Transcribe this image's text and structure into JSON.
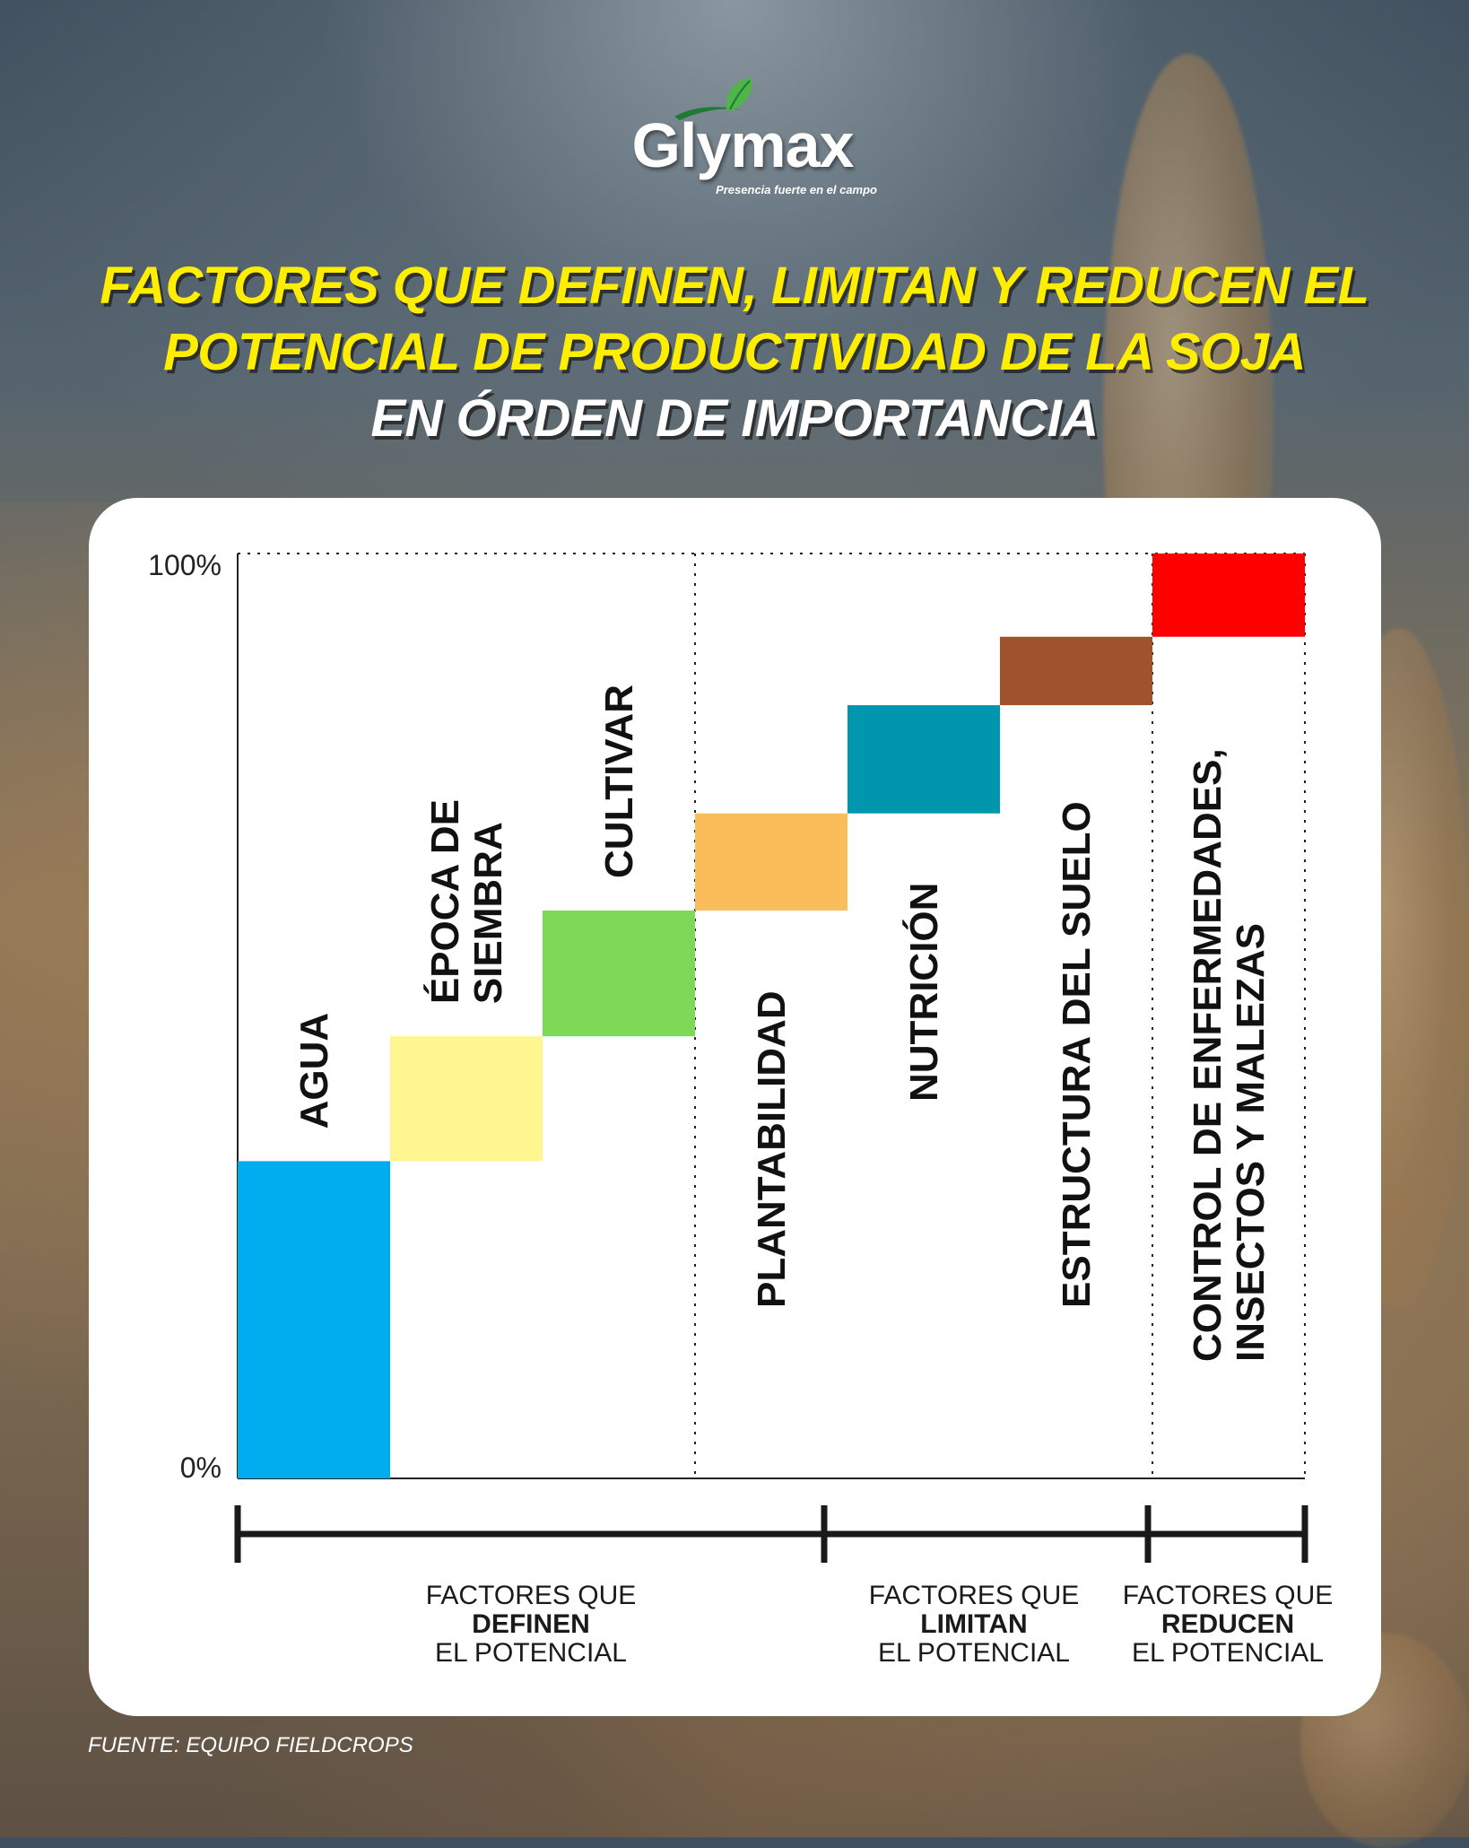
{
  "brand": {
    "name": "Glymax",
    "tagline": "Presencia fuerte en el campo",
    "colors": {
      "leaf_dark": "#1f7a33",
      "leaf_light": "#4fb548"
    }
  },
  "title": {
    "line1": "FACTORES QUE DEFINEN, LIMITAN Y REDUCEN EL",
    "line2": "POTENCIAL DE PRODUCTIVIDAD DE LA SOJA",
    "line3": "EN ÓRDEN DE IMPORTANCIA"
  },
  "chart_data": {
    "type": "bar",
    "subtype": "waterfall",
    "ylim": [
      0,
      100
    ],
    "y_tick_labels": [
      "0%",
      "100%"
    ],
    "grid": false,
    "categories": [
      "AGUA",
      "ÉPOCA DE SIEMBRA",
      "CULTIVAR",
      "PLANTABILIDAD",
      "NUTRICIÓN",
      "ESTRUCTURA DEL SUELO",
      "CONTROL DE ENFERMEDADES, INSECTOS Y MALEZAS"
    ],
    "bars": [
      {
        "label_lines": [
          "AGUA"
        ],
        "start": 0,
        "end": 34.3,
        "color": "#00aeef"
      },
      {
        "label_lines": [
          "ÉPOCA DE",
          "SIEMBRA"
        ],
        "start": 34.3,
        "end": 47.8,
        "color": "#fff68f"
      },
      {
        "label_lines": [
          "CULTIVAR"
        ],
        "start": 47.8,
        "end": 61.4,
        "color": "#7ed957"
      },
      {
        "label_lines": [
          "PLANTABILIDAD"
        ],
        "start": 61.4,
        "end": 71.9,
        "color": "#fbbc5a"
      },
      {
        "label_lines": [
          "NUTRICIÓN"
        ],
        "start": 71.9,
        "end": 83.6,
        "color": "#0096ad"
      },
      {
        "label_lines": [
          "ESTRUCTURA DEL SUELO"
        ],
        "start": 83.6,
        "end": 91.0,
        "color": "#a0522d"
      },
      {
        "label_lines": [
          "CONTROL DE ENFERMEDADES,",
          "INSECTOS Y MALEZAS"
        ],
        "start": 91.0,
        "end": 100,
        "color": "#ff0000"
      }
    ],
    "groups": [
      {
        "prefix": "FACTORES QUE",
        "keyword": "DEFINEN",
        "suffix": "EL POTENCIAL"
      },
      {
        "prefix": "FACTORES QUE",
        "keyword": "LIMITAN",
        "suffix": "EL POTENCIAL"
      },
      {
        "prefix": "FACTORES QUE",
        "keyword": "REDUCEN",
        "suffix": "EL POTENCIAL"
      }
    ]
  },
  "source": "FUENTE: EQUIPO FIELDCROPS"
}
